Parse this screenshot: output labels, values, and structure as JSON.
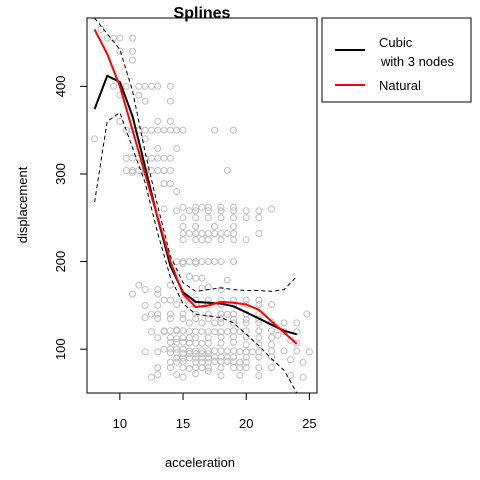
{
  "chart_data": {
    "type": "scatter",
    "title": "Splines",
    "xlabel": "acceleration",
    "ylabel": "displacement",
    "xlim": [
      7.4,
      25.6
    ],
    "ylim": [
      50,
      478
    ],
    "x_ticks": [
      10,
      15,
      20,
      25
    ],
    "y_ticks": [
      100,
      200,
      300,
      400
    ],
    "grid": false,
    "legend_position": "top-right-outside",
    "colors": {
      "points": "#bebebe",
      "cubic": "#000000",
      "natural": "#ff0000",
      "band": "#000000"
    },
    "legend": [
      {
        "lines": [
          "Cubic",
          "with 3 nodes"
        ],
        "color": "#000000"
      },
      {
        "lines": [
          "Natural"
        ],
        "color": "#ff0000"
      }
    ],
    "points": [
      [
        8.0,
        340
      ],
      [
        8.5,
        465
      ],
      [
        9.0,
        455
      ],
      [
        9.5,
        455
      ],
      [
        10.0,
        455
      ],
      [
        10.0,
        440
      ],
      [
        10.5,
        400
      ],
      [
        11.0,
        455
      ],
      [
        11.0,
        440
      ],
      [
        11.0,
        430
      ],
      [
        11.5,
        400
      ],
      [
        11.5,
        390
      ],
      [
        9.5,
        400
      ],
      [
        10.0,
        390
      ],
      [
        10.0,
        360
      ],
      [
        10.5,
        350
      ],
      [
        11.0,
        350
      ],
      [
        11.5,
        350
      ],
      [
        12.0,
        350
      ],
      [
        12.5,
        350
      ],
      [
        13.0,
        350
      ],
      [
        13.5,
        350
      ],
      [
        14.0,
        350
      ],
      [
        14.5,
        350
      ],
      [
        10.5,
        318
      ],
      [
        11.0,
        318
      ],
      [
        11.5,
        318
      ],
      [
        12.0,
        318
      ],
      [
        12.5,
        318
      ],
      [
        13.0,
        318
      ],
      [
        13.5,
        318
      ],
      [
        14.0,
        318
      ],
      [
        10.5,
        304
      ],
      [
        11.0,
        304
      ],
      [
        11.5,
        304
      ],
      [
        12.0,
        304
      ],
      [
        12.5,
        304
      ],
      [
        13.0,
        304
      ],
      [
        13.5,
        304
      ],
      [
        14.0,
        304
      ],
      [
        11.0,
        302
      ],
      [
        12.0,
        302
      ],
      [
        12.0,
        400
      ],
      [
        12.5,
        400
      ],
      [
        13.0,
        400
      ],
      [
        14.0,
        400
      ],
      [
        12.0,
        383
      ],
      [
        14.0,
        383
      ],
      [
        13.0,
        360
      ],
      [
        14.0,
        360
      ],
      [
        15.0,
        350
      ],
      [
        12.0,
        340
      ],
      [
        13.0,
        329
      ],
      [
        14.5,
        329
      ],
      [
        13.5,
        289
      ],
      [
        14.0,
        289
      ],
      [
        14.5,
        280
      ],
      [
        15.0,
        262
      ],
      [
        16.0,
        262
      ],
      [
        16.5,
        262
      ],
      [
        17.0,
        262
      ],
      [
        18.0,
        262
      ],
      [
        19.0,
        262
      ],
      [
        13.5,
        260
      ],
      [
        14.5,
        258
      ],
      [
        15.5,
        258
      ],
      [
        16.0,
        258
      ],
      [
        17.0,
        258
      ],
      [
        18.0,
        258
      ],
      [
        19.0,
        258
      ],
      [
        20.0,
        258
      ],
      [
        21.0,
        258
      ],
      [
        22.0,
        260
      ],
      [
        15.0,
        250
      ],
      [
        16.0,
        250
      ],
      [
        17.0,
        250
      ],
      [
        18.0,
        250
      ],
      [
        19.0,
        250
      ],
      [
        20.0,
        250
      ],
      [
        21.0,
        250
      ],
      [
        15.0,
        240
      ],
      [
        16.0,
        240
      ],
      [
        17.5,
        240
      ],
      [
        19.0,
        240
      ],
      [
        15.0,
        232
      ],
      [
        15.5,
        232
      ],
      [
        16.0,
        232
      ],
      [
        16.5,
        232
      ],
      [
        17.0,
        232
      ],
      [
        17.5,
        232
      ],
      [
        18.0,
        232
      ],
      [
        18.5,
        232
      ],
      [
        19.0,
        232
      ],
      [
        21.0,
        232
      ],
      [
        15.0,
        225
      ],
      [
        16.0,
        225
      ],
      [
        16.5,
        225
      ],
      [
        17.0,
        225
      ],
      [
        18.0,
        225
      ],
      [
        19.0,
        225
      ],
      [
        20.0,
        225
      ],
      [
        14.5,
        200
      ],
      [
        15.0,
        200
      ],
      [
        15.5,
        200
      ],
      [
        16.0,
        200
      ],
      [
        16.5,
        200
      ],
      [
        17.0,
        200
      ],
      [
        17.5,
        200
      ],
      [
        18.0,
        200
      ],
      [
        19.0,
        200
      ],
      [
        15.0,
        198
      ],
      [
        16.0,
        198
      ],
      [
        17.5,
        350
      ],
      [
        19.0,
        350
      ],
      [
        18.5,
        304
      ],
      [
        15.5,
        183
      ],
      [
        16.0,
        181
      ],
      [
        16.5,
        181
      ],
      [
        17.0,
        171
      ],
      [
        18.0,
        168
      ],
      [
        14.0,
        173
      ],
      [
        11.5,
        173
      ],
      [
        12.0,
        168
      ],
      [
        13.0,
        163
      ],
      [
        13.5,
        156
      ],
      [
        14.0,
        156
      ],
      [
        15.0,
        156
      ],
      [
        16.0,
        156
      ],
      [
        17.0,
        156
      ],
      [
        18.0,
        156
      ],
      [
        19.0,
        156
      ],
      [
        20.0,
        156
      ],
      [
        21.0,
        156
      ],
      [
        14.5,
        151
      ],
      [
        15.5,
        151
      ],
      [
        16.0,
        151
      ],
      [
        16.5,
        151
      ],
      [
        17.0,
        151
      ],
      [
        18.0,
        151
      ],
      [
        19.0,
        151
      ],
      [
        20.0,
        151
      ],
      [
        21.0,
        151
      ],
      [
        22.0,
        151
      ],
      [
        24.8,
        140
      ],
      [
        13.0,
        150
      ],
      [
        12.5,
        140
      ],
      [
        13.0,
        140
      ],
      [
        14.0,
        140
      ],
      [
        15.0,
        140
      ],
      [
        16.0,
        140
      ],
      [
        17.0,
        140
      ],
      [
        18.0,
        140
      ],
      [
        18.5,
        140
      ],
      [
        19.0,
        140
      ],
      [
        20.0,
        140
      ],
      [
        21.0,
        140
      ],
      [
        12.0,
        136
      ],
      [
        13.0,
        135
      ],
      [
        14.0,
        135
      ],
      [
        15.0,
        135
      ],
      [
        16.0,
        135
      ],
      [
        17.0,
        135
      ],
      [
        18.0,
        135
      ],
      [
        19.0,
        134
      ],
      [
        20.0,
        134
      ],
      [
        21.0,
        134
      ],
      [
        15.5,
        130
      ],
      [
        16.5,
        130
      ],
      [
        17.5,
        130
      ],
      [
        18.0,
        130
      ],
      [
        19.0,
        130
      ],
      [
        20.0,
        130
      ],
      [
        21.0,
        130
      ],
      [
        22.0,
        131
      ],
      [
        23.0,
        130
      ],
      [
        24.0,
        130
      ],
      [
        12.5,
        120
      ],
      [
        13.5,
        120
      ],
      [
        14.0,
        121
      ],
      [
        14.5,
        121
      ],
      [
        15.0,
        121
      ],
      [
        15.5,
        120
      ],
      [
        16.0,
        120
      ],
      [
        16.5,
        120
      ],
      [
        17.0,
        120
      ],
      [
        17.5,
        120
      ],
      [
        18.0,
        120
      ],
      [
        18.5,
        120
      ],
      [
        19.0,
        121
      ],
      [
        19.5,
        120
      ],
      [
        20.0,
        121
      ],
      [
        21.0,
        121
      ],
      [
        22.0,
        121
      ],
      [
        23.0,
        120
      ],
      [
        24.0,
        120
      ],
      [
        13.0,
        113
      ],
      [
        14.0,
        113
      ],
      [
        14.5,
        112
      ],
      [
        15.0,
        113
      ],
      [
        15.5,
        113
      ],
      [
        16.0,
        113
      ],
      [
        17.0,
        113
      ],
      [
        18.0,
        114
      ],
      [
        19.0,
        114
      ],
      [
        20.0,
        114
      ],
      [
        21.0,
        113
      ],
      [
        22.0,
        113
      ],
      [
        14.0,
        108
      ],
      [
        14.5,
        108
      ],
      [
        15.0,
        108
      ],
      [
        15.5,
        107
      ],
      [
        16.0,
        107
      ],
      [
        16.5,
        107
      ],
      [
        17.0,
        107
      ],
      [
        18.0,
        107
      ],
      [
        19.0,
        108
      ],
      [
        20.0,
        105
      ],
      [
        21.0,
        105
      ],
      [
        22.0,
        105
      ],
      [
        13.5,
        100
      ],
      [
        14.0,
        100
      ],
      [
        14.5,
        100
      ],
      [
        15.0,
        100
      ],
      [
        15.5,
        98
      ],
      [
        16.0,
        98
      ],
      [
        16.5,
        98
      ],
      [
        17.0,
        98
      ],
      [
        17.5,
        98
      ],
      [
        18.0,
        98
      ],
      [
        18.5,
        98
      ],
      [
        19.0,
        98
      ],
      [
        19.5,
        97
      ],
      [
        20.0,
        97
      ],
      [
        20.5,
        97
      ],
      [
        21.0,
        97
      ],
      [
        22.0,
        98
      ],
      [
        23.0,
        98
      ],
      [
        24.0,
        98
      ],
      [
        25.0,
        97
      ],
      [
        12.0,
        97
      ],
      [
        13.0,
        97
      ],
      [
        14.0,
        96
      ],
      [
        14.5,
        96
      ],
      [
        15.0,
        95
      ],
      [
        15.5,
        95
      ],
      [
        16.0,
        95
      ],
      [
        16.5,
        95
      ],
      [
        17.0,
        95
      ],
      [
        17.5,
        91
      ],
      [
        18.0,
        91
      ],
      [
        18.5,
        91
      ],
      [
        19.0,
        91
      ],
      [
        20.0,
        91
      ],
      [
        21.0,
        91
      ],
      [
        22.0,
        91
      ],
      [
        14.5,
        90
      ],
      [
        15.0,
        90
      ],
      [
        15.5,
        90
      ],
      [
        16.0,
        90
      ],
      [
        16.5,
        90
      ],
      [
        17.0,
        90
      ],
      [
        17.5,
        86
      ],
      [
        18.0,
        86
      ],
      [
        18.5,
        86
      ],
      [
        19.0,
        86
      ],
      [
        19.5,
        85
      ],
      [
        20.0,
        85
      ],
      [
        15.0,
        86
      ],
      [
        16.0,
        85
      ],
      [
        16.5,
        85
      ],
      [
        17.0,
        85
      ],
      [
        14.0,
        85
      ],
      [
        14.5,
        85
      ],
      [
        13.0,
        79
      ],
      [
        14.0,
        79
      ],
      [
        15.0,
        79
      ],
      [
        16.0,
        79
      ],
      [
        16.5,
        79
      ],
      [
        17.0,
        79
      ],
      [
        18.0,
        79
      ],
      [
        19.0,
        79
      ],
      [
        19.5,
        79
      ],
      [
        20.0,
        79
      ],
      [
        21.0,
        79
      ],
      [
        22.0,
        79
      ],
      [
        13.0,
        71
      ],
      [
        14.5,
        71
      ],
      [
        18.0,
        70
      ],
      [
        19.5,
        70
      ],
      [
        21.0,
        70
      ],
      [
        23.5,
        70
      ],
      [
        24.5,
        68
      ],
      [
        12.5,
        68
      ],
      [
        15.5,
        78
      ],
      [
        16.0,
        72
      ],
      [
        17.0,
        75
      ],
      [
        15.0,
        68
      ],
      [
        24.5,
        85
      ],
      [
        23.5,
        88
      ],
      [
        23.5,
        110
      ],
      [
        24.0,
        107
      ],
      [
        22.5,
        116
      ],
      [
        12.0,
        150
      ],
      [
        11.0,
        163
      ],
      [
        13.0,
        168
      ],
      [
        13.5,
        121
      ],
      [
        14.5,
        122
      ],
      [
        16.5,
        170
      ],
      [
        18.5,
        179
      ]
    ],
    "series": [
      {
        "name": "Cubic with 3 nodes",
        "style": "solid",
        "color": "#000000",
        "x": [
          8.0,
          9.0,
          10.0,
          11.0,
          12.0,
          13.0,
          14.0,
          15.0,
          16.0,
          17.0,
          18.0,
          19.0,
          20.0,
          21.0,
          22.0,
          23.0,
          24.0
        ],
        "y": [
          374,
          412,
          405,
          366,
          308,
          249,
          195,
          165,
          154,
          153,
          152,
          149,
          142,
          135,
          128,
          121,
          117
        ]
      },
      {
        "name": "Natural",
        "style": "solid",
        "color": "#ff0000",
        "x": [
          8.0,
          9.0,
          10.0,
          11.0,
          12.0,
          13.0,
          14.0,
          15.0,
          16.0,
          17.0,
          18.0,
          19.0,
          20.0,
          21.0,
          22.0,
          23.0,
          24.0
        ],
        "y": [
          465,
          437,
          400,
          350,
          300,
          250,
          200,
          163,
          148,
          150,
          154,
          153,
          151,
          145,
          132,
          119,
          106
        ]
      },
      {
        "name": "Upper band",
        "style": "dashed",
        "color": "#000000",
        "x": [
          8.0,
          9.0,
          10.0,
          11.0,
          12.0,
          13.0,
          14.0,
          15.0,
          16.0,
          17.0,
          18.0,
          19.0,
          20.0,
          21.0,
          22.0,
          23.0,
          24.0
        ],
        "y": [
          478,
          460,
          442,
          395,
          325,
          263,
          206,
          176,
          166,
          168,
          170,
          168,
          167,
          167,
          166,
          168,
          183
        ]
      },
      {
        "name": "Lower band",
        "style": "dashed",
        "color": "#000000",
        "x": [
          8.0,
          9.0,
          10.0,
          11.0,
          12.0,
          13.0,
          14.0,
          15.0,
          16.0,
          17.0,
          18.0,
          19.0,
          20.0,
          21.0,
          22.0,
          23.0,
          24.0
        ],
        "y": [
          268,
          360,
          370,
          330,
          290,
          232,
          182,
          152,
          140,
          138,
          136,
          130,
          117,
          104,
          89,
          76,
          50
        ]
      }
    ]
  }
}
